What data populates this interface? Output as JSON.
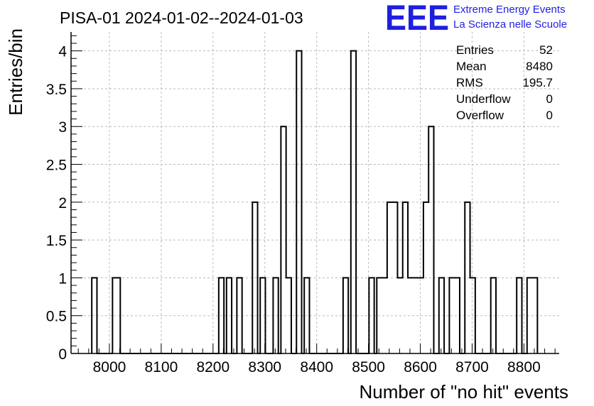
{
  "header": {
    "title": "PISA-01 2024-01-02--2024-01-03",
    "logo_mark": "EEE",
    "logo_line1": "Extreme Energy Events",
    "logo_line2": "La Scienza nelle Scuole"
  },
  "stats": {
    "entries_label": "Entries",
    "entries_value": "52",
    "mean_label": "Mean",
    "mean_value": "8480",
    "rms_label": "RMS",
    "rms_value": "195.7",
    "underflow_label": "Underflow",
    "underflow_value": "0",
    "overflow_label": "Overflow",
    "overflow_value": "0"
  },
  "chart_data": {
    "type": "bar",
    "style": "step-histogram",
    "title": "PISA-01 2024-01-02--2024-01-03",
    "xlabel": "Number of \"no hit\" events",
    "ylabel": "Entries/bin",
    "xlim": [
      7926,
      8868
    ],
    "ylim": [
      0,
      4.25
    ],
    "bin_width": 10,
    "x_ticks": [
      8000,
      8100,
      8200,
      8300,
      8400,
      8500,
      8600,
      8700,
      8800
    ],
    "x_tick_labels": [
      "8000",
      "8100",
      "8200",
      "8300",
      "8400",
      "8500",
      "8600",
      "8700",
      "8800"
    ],
    "y_ticks": [
      0,
      0.5,
      1,
      1.5,
      2,
      2.5,
      3,
      3.5,
      4
    ],
    "y_tick_labels": [
      "0",
      "0.5",
      "1",
      "1.5",
      "2",
      "2.5",
      "3",
      "3.5",
      "4"
    ],
    "grid": true,
    "bins": [
      {
        "x": 7966,
        "value": 1
      },
      {
        "x": 8006,
        "value": 1
      },
      {
        "x": 8011,
        "value": 1
      },
      {
        "x": 8211,
        "value": 1
      },
      {
        "x": 8226,
        "value": 1
      },
      {
        "x": 8246,
        "value": 1
      },
      {
        "x": 8276,
        "value": 2
      },
      {
        "x": 8291,
        "value": 1
      },
      {
        "x": 8316,
        "value": 1
      },
      {
        "x": 8331,
        "value": 3
      },
      {
        "x": 8341,
        "value": 1
      },
      {
        "x": 8361,
        "value": 4
      },
      {
        "x": 8376,
        "value": 1
      },
      {
        "x": 8451,
        "value": 1
      },
      {
        "x": 8466,
        "value": 4
      },
      {
        "x": 8501,
        "value": 1
      },
      {
        "x": 8516,
        "value": 1
      },
      {
        "x": 8526,
        "value": 1
      },
      {
        "x": 8536,
        "value": 2
      },
      {
        "x": 8546,
        "value": 2
      },
      {
        "x": 8556,
        "value": 1
      },
      {
        "x": 8566,
        "value": 2
      },
      {
        "x": 8576,
        "value": 1
      },
      {
        "x": 8586,
        "value": 1
      },
      {
        "x": 8596,
        "value": 1
      },
      {
        "x": 8606,
        "value": 2
      },
      {
        "x": 8616,
        "value": 3
      },
      {
        "x": 8636,
        "value": 1
      },
      {
        "x": 8656,
        "value": 1
      },
      {
        "x": 8666,
        "value": 1
      },
      {
        "x": 8686,
        "value": 2
      },
      {
        "x": 8696,
        "value": 1
      },
      {
        "x": 8736,
        "value": 1
      },
      {
        "x": 8786,
        "value": 1
      },
      {
        "x": 8806,
        "value": 1
      },
      {
        "x": 8816,
        "value": 1
      }
    ]
  }
}
